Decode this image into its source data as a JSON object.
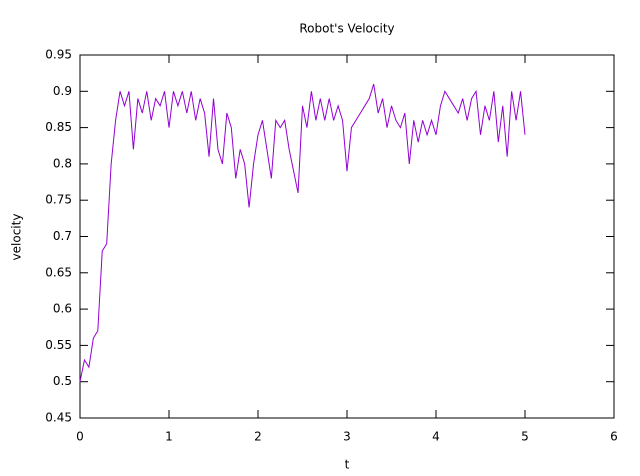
{
  "chart_data": {
    "type": "line",
    "title": "Robot's Velocity",
    "x_label": "t",
    "y_label": "velocity",
    "x": [
      0,
      0.05,
      0.1,
      0.15,
      0.2,
      0.25,
      0.3,
      0.35,
      0.4,
      0.45,
      0.5,
      0.55,
      0.6,
      0.65,
      0.7,
      0.75,
      0.8,
      0.85,
      0.9,
      0.95,
      1,
      1.05,
      1.1,
      1.15,
      1.2,
      1.25,
      1.3,
      1.35,
      1.4,
      1.45,
      1.5,
      1.55,
      1.6,
      1.65,
      1.7,
      1.75,
      1.8,
      1.85,
      1.9,
      1.95,
      2,
      2.05,
      2.1,
      2.15,
      2.2,
      2.25,
      2.3,
      2.35,
      2.4,
      2.45,
      2.5,
      2.55,
      2.6,
      2.65,
      2.7,
      2.75,
      2.8,
      2.85,
      2.9,
      2.95,
      3,
      3.05,
      3.1,
      3.15,
      3.2,
      3.25,
      3.3,
      3.35,
      3.4,
      3.45,
      3.5,
      3.55,
      3.6,
      3.65,
      3.7,
      3.75,
      3.8,
      3.85,
      3.9,
      3.95,
      4,
      4.05,
      4.1,
      4.15,
      4.2,
      4.25,
      4.3,
      4.35,
      4.4,
      4.45,
      4.5,
      4.55,
      4.6,
      4.65,
      4.7,
      4.75,
      4.8,
      4.85,
      4.9,
      4.95,
      5
    ],
    "series": [
      {
        "color": "#9400d3",
        "values": [
          0.5,
          0.53,
          0.52,
          0.56,
          0.57,
          0.68,
          0.69,
          0.8,
          0.86,
          0.9,
          0.88,
          0.9,
          0.82,
          0.89,
          0.87,
          0.9,
          0.86,
          0.89,
          0.88,
          0.9,
          0.85,
          0.9,
          0.88,
          0.9,
          0.87,
          0.9,
          0.86,
          0.89,
          0.87,
          0.81,
          0.89,
          0.82,
          0.8,
          0.87,
          0.85,
          0.78,
          0.82,
          0.8,
          0.74,
          0.8,
          0.84,
          0.86,
          0.82,
          0.78,
          0.86,
          0.85,
          0.86,
          0.82,
          0.79,
          0.76,
          0.88,
          0.85,
          0.9,
          0.86,
          0.89,
          0.86,
          0.89,
          0.86,
          0.88,
          0.86,
          0.79,
          0.85,
          0.86,
          0.87,
          0.88,
          0.89,
          0.91,
          0.87,
          0.89,
          0.85,
          0.88,
          0.86,
          0.85,
          0.87,
          0.8,
          0.86,
          0.83,
          0.86,
          0.84,
          0.86,
          0.84,
          0.88,
          0.9,
          0.89,
          0.88,
          0.87,
          0.89,
          0.86,
          0.89,
          0.9,
          0.84,
          0.88,
          0.86,
          0.9,
          0.83,
          0.88,
          0.81,
          0.9,
          0.86,
          0.9,
          0.84
        ]
      }
    ],
    "xlim": [
      0,
      6
    ],
    "xticks": [
      0,
      1,
      2,
      3,
      4,
      5,
      6
    ],
    "ylim": [
      0.45,
      0.95
    ],
    "yticks": [
      0.45,
      0.5,
      0.55,
      0.6,
      0.65,
      0.7,
      0.75,
      0.8,
      0.85,
      0.9,
      0.95
    ],
    "grid": false
  }
}
